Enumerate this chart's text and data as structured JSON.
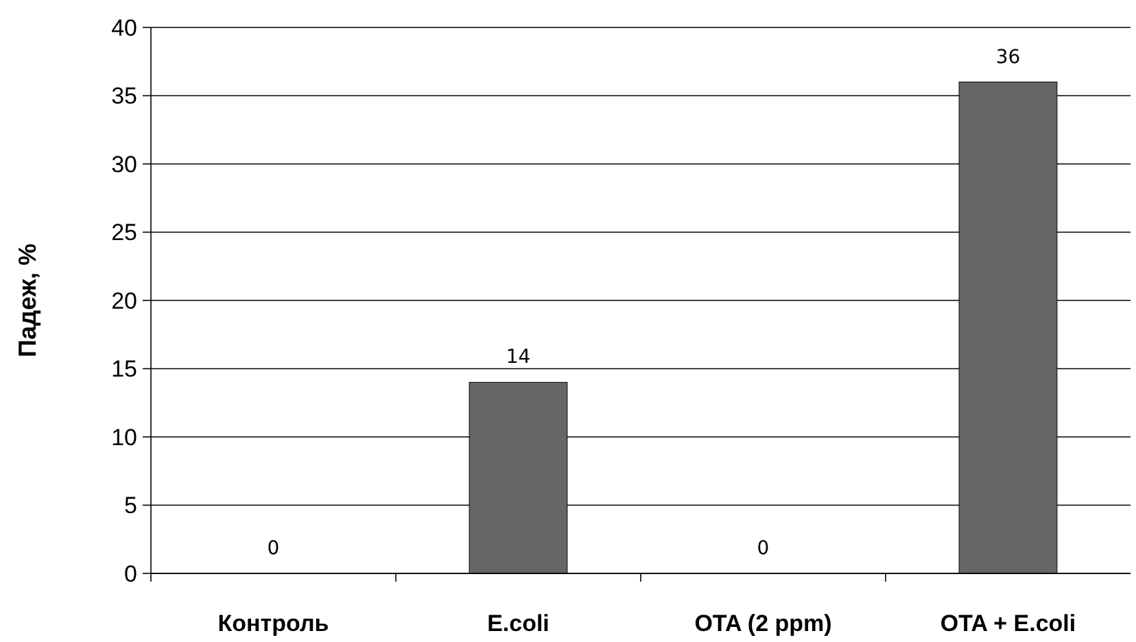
{
  "chart_data": {
    "type": "bar",
    "ylabel": "Падеж, %",
    "categories": [
      "Контроль",
      "E.coli",
      "OTA (2 ppm)",
      "OTA + E.coli"
    ],
    "values": [
      0,
      14,
      0,
      36
    ],
    "color": "#666666",
    "ylim": [
      0,
      40
    ],
    "yticks": [
      0,
      5,
      10,
      15,
      20,
      25,
      30,
      35,
      40
    ],
    "grid": "y",
    "data_labels": true
  }
}
